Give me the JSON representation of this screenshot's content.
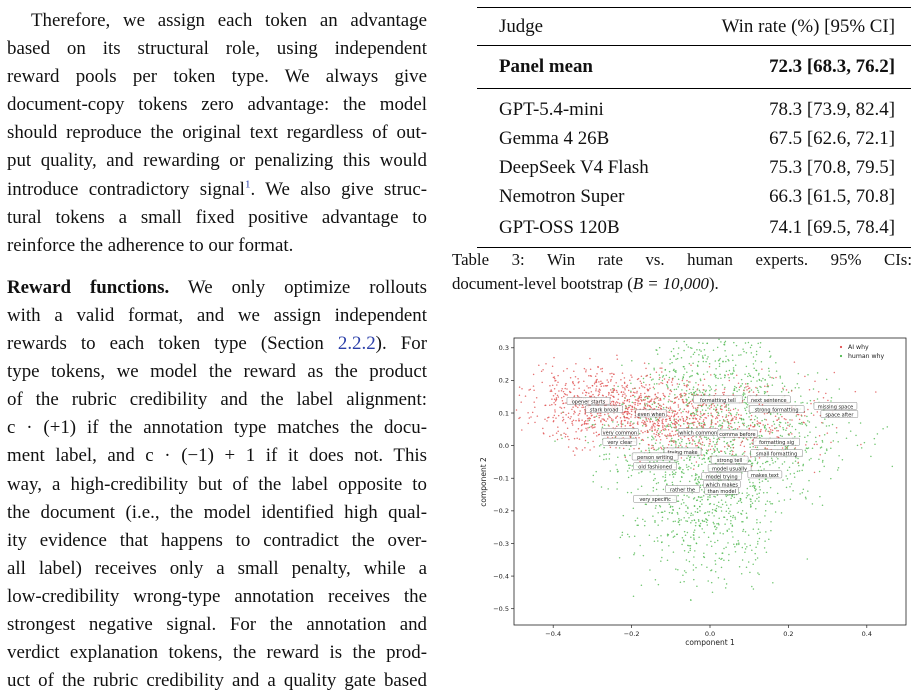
{
  "body_text": {
    "para1_lines": [
      "Therefore, we assign each token an advantage",
      "based on its structural role, using independent",
      "reward pools per token type.  We always give",
      "document-copy tokens zero advantage: the model",
      "should reproduce the original text regardless of out-",
      "put quality, and rewarding or penalizing this would",
      "introduce contradictory signal",
      "tural tokens a small fixed positive advantage to",
      "reinforce the adherence to our format."
    ],
    "footnote_mark": "1",
    "para1_line7_tail": ". We also give struc-",
    "para2_heading": "Reward functions.",
    "para2_line1_tail": "  We only optimize rollouts",
    "para2_lines": [
      "with a valid format, and we assign independent",
      "rewards to each token type (Section ",
      "type tokens, we model the reward as the product",
      "of the rubric credibility and the label alignment:",
      "c · (+1) if the annotation type matches the docu-",
      "ment label, and c · (−1) + 1 if it does not.  This",
      "way, a high-credibility but of the label opposite to",
      "the document (i.e., the model identified high qual-",
      "ity evidence that happens to contradict the over-",
      "all label) receives only a small penalty, while a",
      "low-credibility wrong-type annotation receives the",
      "strongest negative signal.  For the annotation and",
      "verdict explanation tokens, the reward is the prod-",
      "uct of the rubric credibility and a quality gate based"
    ],
    "section_ref": "2.2.2",
    "section_ref_tail": ").  For"
  },
  "table": {
    "header": [
      "Judge",
      "Win rate (%) [95% CI]"
    ],
    "mean_row": [
      "Panel mean",
      "72.3 [68.3, 76.2]"
    ],
    "rows": [
      [
        "GPT-5.4-mini",
        "78.3 [73.9, 82.4]"
      ],
      [
        "Gemma 4 26B",
        "67.5 [62.6, 72.1]"
      ],
      [
        "DeepSeek V4 Flash",
        "75.3 [70.8, 79.5]"
      ],
      [
        "Nemotron Super",
        "66.3 [61.5, 70.8]"
      ],
      [
        "GPT-OSS 120B",
        "74.1 [69.5, 78.4]"
      ]
    ]
  },
  "caption": {
    "line1": "Table 3:  Win rate vs. human experts.   95% CIs:",
    "line2_pre": "document-level bootstrap (",
    "line2_math": "B = 10,000",
    "line2_post": ")."
  },
  "chart_data": {
    "type": "scatter",
    "title": "",
    "xlabel": "component 1",
    "ylabel": "component 2",
    "xlim": [
      -0.5,
      0.5
    ],
    "ylim": [
      -0.55,
      0.33
    ],
    "xticks": [
      "−0.4",
      "−0.2",
      "0.0",
      "0.2",
      "0.4"
    ],
    "xtick_values": [
      -0.4,
      -0.2,
      0.0,
      0.2,
      0.4
    ],
    "yticks": [
      "0.3",
      "0.2",
      "0.1",
      "0.0",
      "−0.1",
      "−0.2",
      "−0.3",
      "−0.4",
      "−0.5"
    ],
    "ytick_values": [
      0.3,
      0.2,
      0.1,
      0.0,
      -0.1,
      -0.2,
      -0.3,
      -0.4,
      -0.5
    ],
    "legend_position": "top-right",
    "series": [
      {
        "name": "AI why",
        "color": "#e05050"
      },
      {
        "name": "human why",
        "color": "#4fb84f"
      }
    ],
    "annotations": [
      {
        "text": "opener starts",
        "x": -0.31,
        "y": 0.135
      },
      {
        "text": "stark broad",
        "x": -0.27,
        "y": 0.11
      },
      {
        "text": "even when",
        "x": -0.15,
        "y": 0.097
      },
      {
        "text": "very common",
        "x": -0.23,
        "y": 0.04
      },
      {
        "text": "very clear",
        "x": -0.23,
        "y": 0.01
      },
      {
        "text": "formatting tell",
        "x": 0.02,
        "y": 0.14
      },
      {
        "text": "next sentence",
        "x": 0.15,
        "y": 0.14
      },
      {
        "text": "missing space",
        "x": 0.32,
        "y": 0.12
      },
      {
        "text": "strong formatting",
        "x": 0.17,
        "y": 0.11
      },
      {
        "text": "space after",
        "x": 0.33,
        "y": 0.095
      },
      {
        "text": "which common",
        "x": -0.03,
        "y": 0.04
      },
      {
        "text": "comma before",
        "x": 0.07,
        "y": 0.035
      },
      {
        "text": "formatting sig",
        "x": 0.17,
        "y": 0.01
      },
      {
        "text": "trying make",
        "x": -0.07,
        "y": -0.02
      },
      {
        "text": "person writing",
        "x": -0.14,
        "y": -0.035
      },
      {
        "text": "strong tell",
        "x": 0.05,
        "y": -0.045
      },
      {
        "text": "small formatting",
        "x": 0.17,
        "y": -0.025
      },
      {
        "text": "old fashioned",
        "x": -0.14,
        "y": -0.065
      },
      {
        "text": "model usually",
        "x": 0.05,
        "y": -0.07
      },
      {
        "text": "model trying",
        "x": 0.03,
        "y": -0.095
      },
      {
        "text": "makes text",
        "x": 0.14,
        "y": -0.09
      },
      {
        "text": "which makes",
        "x": 0.03,
        "y": -0.12
      },
      {
        "text": "rather the",
        "x": -0.07,
        "y": -0.135
      },
      {
        "text": "than model",
        "x": 0.03,
        "y": -0.14
      },
      {
        "text": "very specific",
        "x": -0.14,
        "y": -0.165
      }
    ]
  }
}
